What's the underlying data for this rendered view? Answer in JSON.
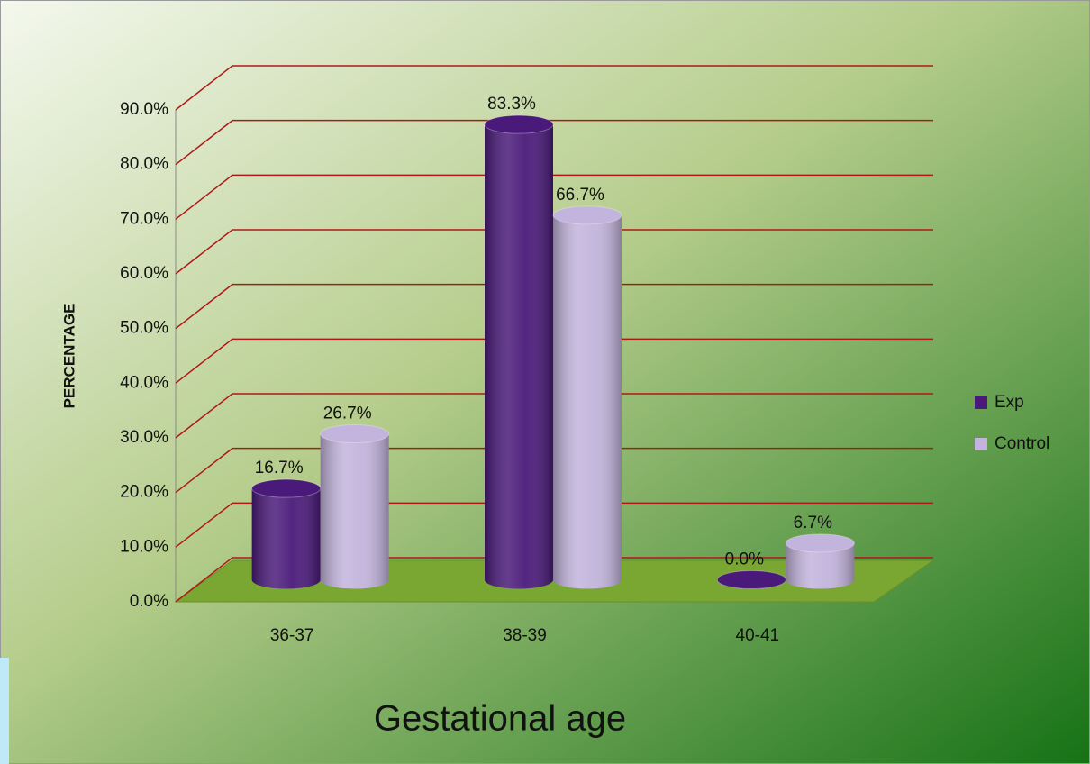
{
  "chart_data": {
    "type": "bar",
    "x_label": "Gestational age",
    "y_label": "PERCENTAGE",
    "categories": [
      "36-37",
      "38-39",
      "40-41"
    ],
    "series": [
      {
        "name": "Exp",
        "color": "#4a1a7a",
        "values": [
          16.7,
          83.3,
          0
        ],
        "value_labels": [
          "16.7%",
          "83.3%",
          "0.0%"
        ]
      },
      {
        "name": "Control",
        "color": "#c2b4dc",
        "values": [
          26.7,
          66.7,
          6.7
        ],
        "value_labels": [
          "26.7%",
          "66.7%",
          "6.7%"
        ]
      }
    ],
    "ylim": [
      0,
      90
    ],
    "yticks": [
      {
        "value": 0,
        "label": "0.0%"
      },
      {
        "value": 10,
        "label": "10.0%"
      },
      {
        "value": 20,
        "label": "20.0%"
      },
      {
        "value": 30,
        "label": "30.0%"
      },
      {
        "value": 40,
        "label": "40.0%"
      },
      {
        "value": 50,
        "label": "50.0%"
      },
      {
        "value": 60,
        "label": "60.0%"
      },
      {
        "value": 70,
        "label": "70.0%"
      },
      {
        "value": 80,
        "label": "80.0%"
      },
      {
        "value": 90,
        "label": "90.0%"
      }
    ],
    "grid": true,
    "legend": "right"
  }
}
